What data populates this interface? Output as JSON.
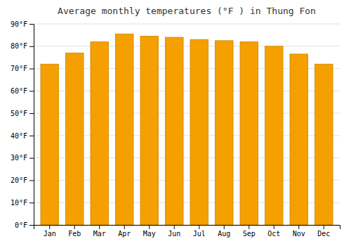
{
  "chart_data": {
    "type": "bar",
    "title": "Average monthly temperatures (°F ) in Thung Fon",
    "categories": [
      "Jan",
      "Feb",
      "Mar",
      "Apr",
      "May",
      "Jun",
      "Jul",
      "Aug",
      "Sep",
      "Oct",
      "Nov",
      "Dec"
    ],
    "values": [
      72,
      77,
      82,
      85.5,
      84.5,
      84,
      83,
      82.5,
      82,
      80,
      76.5,
      72
    ],
    "color": "#F5A000",
    "ylim": [
      0,
      90
    ],
    "yticks": [
      {
        "value": 0,
        "label": "0°F"
      },
      {
        "value": 10,
        "label": "10°F"
      },
      {
        "value": 20,
        "label": "20°F"
      },
      {
        "value": 30,
        "label": "30°F"
      },
      {
        "value": 40,
        "label": "40°F"
      },
      {
        "value": 50,
        "label": "50°F"
      },
      {
        "value": 60,
        "label": "60°F"
      },
      {
        "value": 70,
        "label": "70°F"
      },
      {
        "value": 80,
        "label": "80°F"
      },
      {
        "value": 90,
        "label": "90°F"
      }
    ],
    "grid": true
  }
}
